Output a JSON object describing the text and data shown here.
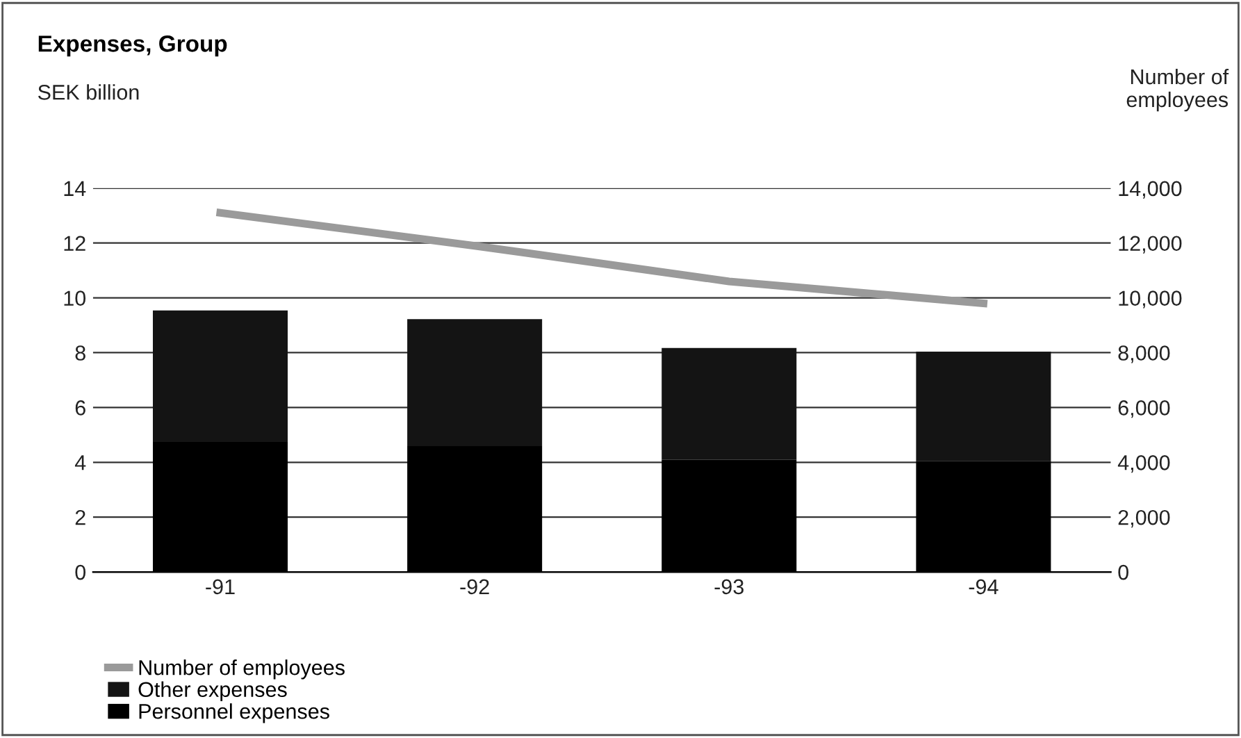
{
  "chart_data": {
    "type": "bar",
    "title": "Expenses, Group",
    "ylabel": "SEK billion",
    "y2label": "Number of\nemployees",
    "categories": [
      "-91",
      "-92",
      "-93",
      "-94"
    ],
    "stacked": true,
    "series": [
      {
        "name": "Personnel expenses",
        "color": "#000000",
        "values": [
          4.74,
          4.59,
          4.09,
          4.05
        ]
      },
      {
        "name": "Other expenses",
        "color": "#141414",
        "values": [
          4.8,
          4.63,
          4.08,
          3.99
        ]
      },
      {
        "name": "Number of employees",
        "type": "line",
        "axis": "y2",
        "color": "#9a9a9a",
        "values": [
          13100,
          11900,
          10600,
          9800
        ]
      }
    ],
    "ylim": [
      0,
      14
    ],
    "yticks": [
      0,
      2,
      4,
      6,
      8,
      10,
      12,
      14
    ],
    "y2lim": [
      0,
      14000
    ],
    "y2ticks": [
      {
        "value": 0,
        "label": "0"
      },
      {
        "value": 2000,
        "label": "2,000"
      },
      {
        "value": 4000,
        "label": "4,000"
      },
      {
        "value": 6000,
        "label": "6,000"
      },
      {
        "value": 8000,
        "label": "8,000"
      },
      {
        "value": 10000,
        "label": "10,000"
      },
      {
        "value": 12000,
        "label": "12,000"
      },
      {
        "value": 14000,
        "label": "14,000"
      }
    ],
    "grid": "y",
    "legend": "bottom left"
  }
}
